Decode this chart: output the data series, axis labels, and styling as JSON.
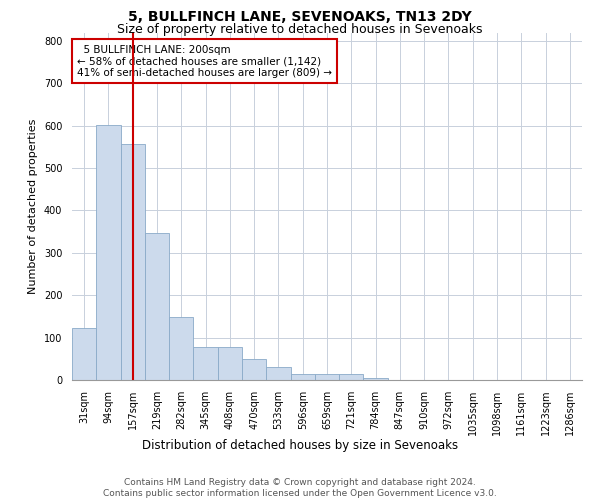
{
  "title": "5, BULLFINCH LANE, SEVENOAKS, TN13 2DY",
  "subtitle": "Size of property relative to detached houses in Sevenoaks",
  "xlabel": "Distribution of detached houses by size in Sevenoaks",
  "ylabel": "Number of detached properties",
  "footer_line1": "Contains HM Land Registry data © Crown copyright and database right 2024.",
  "footer_line2": "Contains public sector information licensed under the Open Government Licence v3.0.",
  "bar_color": "#ccdaec",
  "bar_edge_color": "#8aaac8",
  "grid_color": "#c8d0dc",
  "annotation_box_color": "#cc0000",
  "vline_color": "#cc0000",
  "categories": [
    "31sqm",
    "94sqm",
    "157sqm",
    "219sqm",
    "282sqm",
    "345sqm",
    "408sqm",
    "470sqm",
    "533sqm",
    "596sqm",
    "659sqm",
    "721sqm",
    "784sqm",
    "847sqm",
    "910sqm",
    "972sqm",
    "1035sqm",
    "1098sqm",
    "1161sqm",
    "1223sqm",
    "1286sqm"
  ],
  "values": [
    122,
    601,
    556,
    347,
    148,
    78,
    78,
    50,
    30,
    14,
    13,
    13,
    5,
    0,
    0,
    0,
    0,
    0,
    0,
    0,
    0
  ],
  "annotation_text": "  5 BULLFINCH LANE: 200sqm\n← 58% of detached houses are smaller (1,142)\n41% of semi-detached houses are larger (809) →",
  "ylim": [
    0,
    820
  ],
  "yticks": [
    0,
    100,
    200,
    300,
    400,
    500,
    600,
    700,
    800
  ],
  "vline_x": 2.0,
  "title_fontsize": 10,
  "subtitle_fontsize": 9,
  "tick_fontsize": 7,
  "annotation_fontsize": 7.5,
  "ylabel_fontsize": 8,
  "xlabel_fontsize": 8.5,
  "footer_fontsize": 6.5
}
